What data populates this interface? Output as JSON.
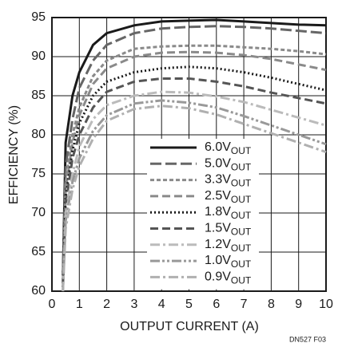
{
  "chart_data": {
    "type": "line",
    "xlabel": "OUTPUT CURRENT (A)",
    "ylabel": "EFFICIENCY (%)",
    "annotation": "DN527 F03",
    "xlim": [
      0,
      10
    ],
    "ylim": [
      60,
      95
    ],
    "xticks": [
      0,
      1,
      2,
      3,
      4,
      5,
      6,
      7,
      8,
      9,
      10
    ],
    "yticks": [
      60,
      65,
      70,
      75,
      80,
      85,
      90,
      95
    ],
    "grid": true,
    "x": [
      0.4,
      0.5,
      0.75,
      1,
      1.5,
      2,
      3,
      4,
      5,
      6,
      7,
      8,
      9,
      10
    ],
    "series": [
      {
        "name": "6.0VOUT",
        "color": "#1a1a1a",
        "dash": "solid",
        "width": 3,
        "values": [
          62,
          79,
          85,
          88,
          91.5,
          93,
          94,
          94.5,
          94.6,
          94.7,
          94.5,
          94.3,
          94.1,
          94
        ]
      },
      {
        "name": "5.0VOUT",
        "color": "#666666",
        "dash": "longdash",
        "width": 3,
        "values": [
          61,
          76,
          82,
          86,
          89.5,
          91.5,
          93,
          93.6,
          93.8,
          93.9,
          93.8,
          93.6,
          93.3,
          93
        ]
      },
      {
        "name": "3.3VOUT",
        "color": "#8a8a8a",
        "dash": "shortdash",
        "width": 3,
        "values": [
          61,
          74,
          80,
          83.5,
          87.5,
          89.5,
          91,
          91.3,
          91.4,
          91.4,
          91.2,
          91,
          90.7,
          90.3
        ]
      },
      {
        "name": "2.5VOUT",
        "color": "#8a8a8a",
        "dash": "dash",
        "width": 3,
        "values": [
          61,
          73,
          79,
          82.5,
          86.5,
          88.5,
          90,
          90.5,
          90.6,
          90.5,
          90.2,
          89.7,
          89,
          88.3
        ]
      },
      {
        "name": "1.8VOUT",
        "color": "#1a1a1a",
        "dash": "dot",
        "width": 3,
        "values": [
          60.5,
          72,
          78,
          81.5,
          85,
          86.8,
          88,
          88.5,
          88.7,
          88.5,
          88,
          87.3,
          86.5,
          85.7
        ]
      },
      {
        "name": "1.5VOUT",
        "color": "#555555",
        "dash": "dash",
        "width": 3,
        "values": [
          60.5,
          71,
          77,
          80,
          83.5,
          85.5,
          86.8,
          87.2,
          87.2,
          86.8,
          86.2,
          85.4,
          84.7,
          84
        ]
      },
      {
        "name": "1.2VOUT",
        "color": "#bbbbbb",
        "dash": "dashdot",
        "width": 3,
        "values": [
          60,
          70,
          75,
          78.5,
          82,
          83.8,
          85,
          85.5,
          85.4,
          84.9,
          84.2,
          83.2,
          82.2,
          81.2
        ]
      },
      {
        "name": "1.0VOUT",
        "color": "#999999",
        "dash": "dashdotdot",
        "width": 3,
        "values": [
          60,
          69,
          74,
          77,
          80.5,
          82.5,
          84,
          84.4,
          84.1,
          83.5,
          82.4,
          81.2,
          80,
          78.8
        ]
      },
      {
        "name": "0.9VOUT",
        "color": "#b0b0b0",
        "dash": "dashdot",
        "width": 3,
        "values": [
          60,
          68,
          73,
          76,
          79.5,
          81.8,
          83.3,
          83.7,
          83.4,
          82.6,
          81.4,
          80.2,
          79,
          77.8
        ]
      }
    ]
  }
}
